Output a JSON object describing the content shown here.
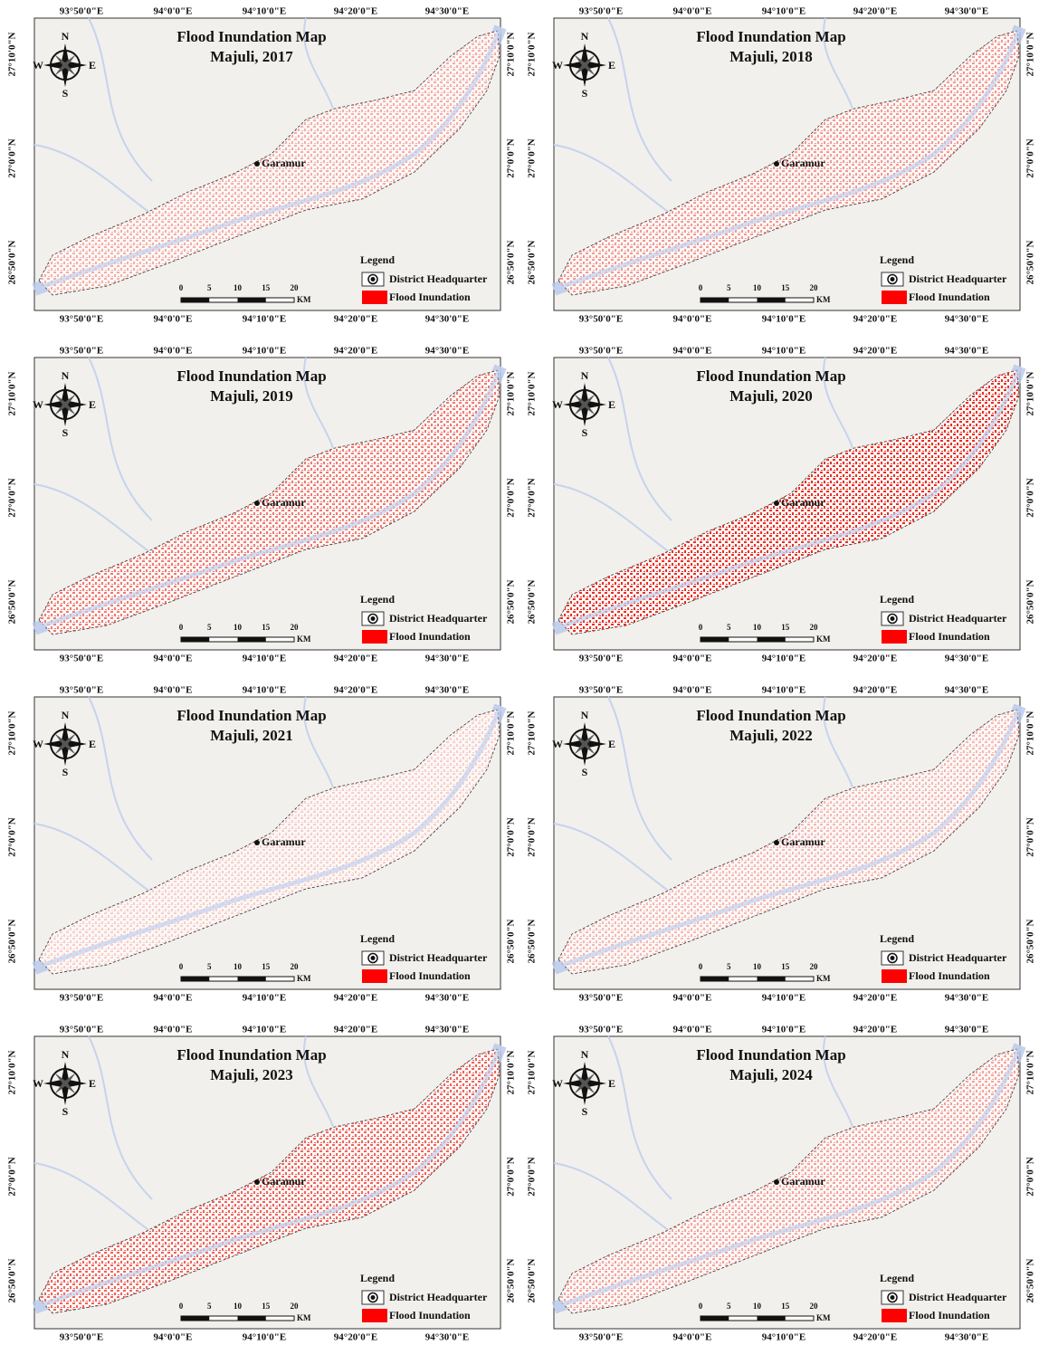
{
  "panels": [
    {
      "title": "Flood Inundation Map",
      "subtitle": "Majuli, 2017"
    },
    {
      "title": "Flood Inundation Map",
      "subtitle": "Majuli, 2018"
    },
    {
      "title": "Flood Inundation Map",
      "subtitle": "Majuli, 2019"
    },
    {
      "title": "Flood Inundation Map",
      "subtitle": "Majuli, 2020"
    },
    {
      "title": "Flood Inundation Map",
      "subtitle": "Majuli, 2021"
    },
    {
      "title": "Flood Inundation Map",
      "subtitle": "Majuli, 2022"
    },
    {
      "title": "Flood Inundation Map",
      "subtitle": "Majuli, 2023"
    },
    {
      "title": "Flood Inundation Map",
      "subtitle": "Majuli, 2024"
    }
  ],
  "longitude_labels": [
    "93°50'0\"E",
    "94°0'0\"E",
    "94°10'0\"E",
    "94°20'0\"E",
    "94°30'0\"E"
  ],
  "latitude_labels": [
    "27°10'0\"N",
    "27°0'0\"N",
    "26°50'0\"N"
  ],
  "compass": {
    "n": "N",
    "e": "E",
    "s": "S",
    "w": "W"
  },
  "headquarter": "Garamur",
  "legend": {
    "title": "Legend",
    "items": [
      "District Headquarter",
      "Flood Inundation"
    ]
  },
  "scale_bar": {
    "ticks": [
      0,
      5,
      10,
      15,
      20
    ],
    "unit": "KM"
  }
}
